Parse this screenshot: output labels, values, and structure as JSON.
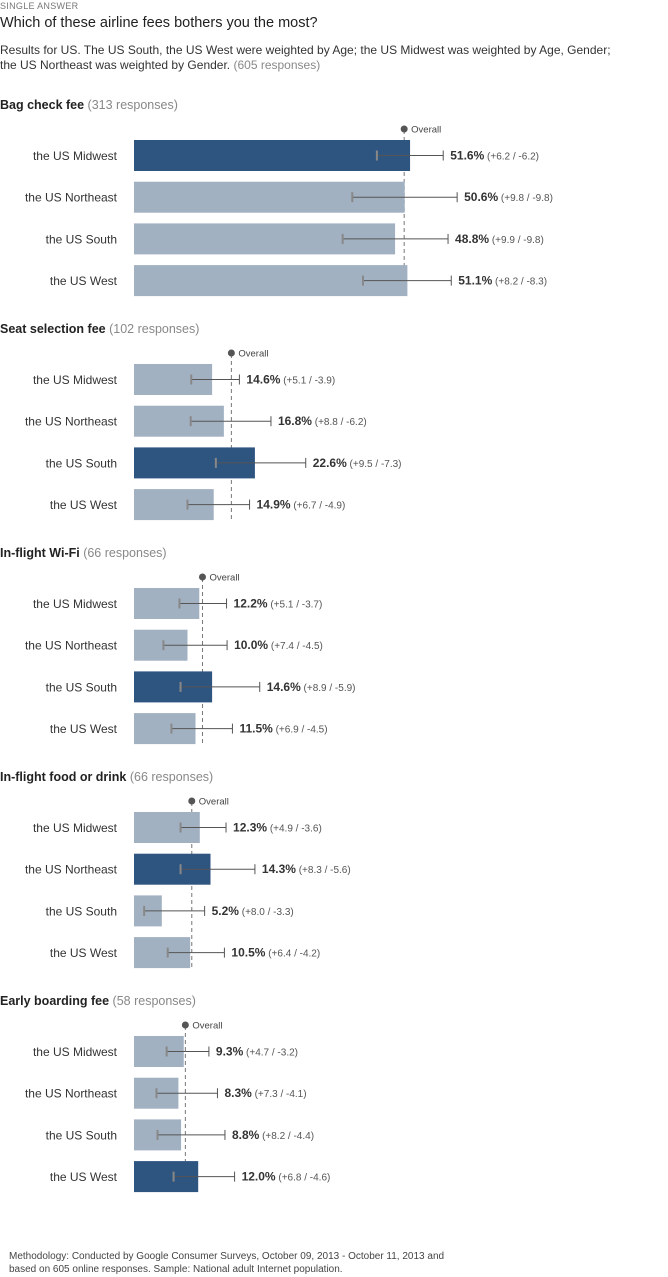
{
  "header": {
    "kicker": "SINGLE ANSWER",
    "question": "Which of these airline fees bothers you the most?",
    "results_line1": "Results for US. The US South, the US West were weighted by Age; the US Midwest was weighted by Age, Gender;",
    "results_line2": "the US Northeast was weighted by Gender.",
    "responses": "(605 responses)"
  },
  "overall_label": "Overall",
  "colors": {
    "highlight": "#2e5480",
    "normal": "#a2b1c2",
    "text": "#333333"
  },
  "chart_data": [
    {
      "type": "bar",
      "title": "Bag check fee",
      "responses": "(313 responses)",
      "categories": [
        "the US Midwest",
        "the US Northeast",
        "the US South",
        "the US West"
      ],
      "values": [
        51.6,
        50.6,
        48.8,
        51.1
      ],
      "value_labels": [
        "51.6%",
        "50.6%",
        "48.8%",
        "51.1%"
      ],
      "error_labels": [
        "(+6.2 / -6.2)",
        "(+9.8 / -9.8)",
        "(+9.9 / -9.8)",
        "(+8.2 / -8.3)"
      ],
      "error_plus": [
        6.2,
        9.8,
        9.9,
        8.2
      ],
      "error_minus": [
        6.2,
        9.8,
        9.8,
        8.3
      ],
      "highlight_index": 0,
      "overall": 50.5
    },
    {
      "type": "bar",
      "title": "Seat selection fee",
      "responses": "(102 responses)",
      "categories": [
        "the US Midwest",
        "the US Northeast",
        "the US South",
        "the US West"
      ],
      "values": [
        14.6,
        16.8,
        22.6,
        14.9
      ],
      "value_labels": [
        "14.6%",
        "16.8%",
        "22.6%",
        "14.9%"
      ],
      "error_labels": [
        "(+5.1 / -3.9)",
        "(+8.8 / -6.2)",
        "(+9.5 / -7.3)",
        "(+6.7 / -4.9)"
      ],
      "error_plus": [
        5.1,
        8.8,
        9.5,
        6.7
      ],
      "error_minus": [
        3.9,
        6.2,
        7.3,
        4.9
      ],
      "highlight_index": 2,
      "overall": 18.2
    },
    {
      "type": "bar",
      "title": "In-flight Wi-Fi",
      "responses": "(66 responses)",
      "categories": [
        "the US Midwest",
        "the US Northeast",
        "the US South",
        "the US West"
      ],
      "values": [
        12.2,
        10.0,
        14.6,
        11.5
      ],
      "value_labels": [
        "12.2%",
        "10.0%",
        "14.6%",
        "11.5%"
      ],
      "error_labels": [
        "(+5.1 / -3.7)",
        "(+7.4 / -4.5)",
        "(+8.9 / -5.9)",
        "(+6.9 / -4.5)"
      ],
      "error_plus": [
        5.1,
        7.4,
        8.9,
        6.9
      ],
      "error_minus": [
        3.7,
        4.5,
        5.9,
        4.5
      ],
      "highlight_index": 2,
      "overall": 12.8
    },
    {
      "type": "bar",
      "title": "In-flight food or drink",
      "responses": "(66 responses)",
      "categories": [
        "the US Midwest",
        "the US Northeast",
        "the US South",
        "the US West"
      ],
      "values": [
        12.3,
        14.3,
        5.2,
        10.5
      ],
      "value_labels": [
        "12.3%",
        "14.3%",
        "5.2%",
        "10.5%"
      ],
      "error_labels": [
        "(+4.9 / -3.6)",
        "(+8.3 / -5.6)",
        "(+8.0 / -3.3)",
        "(+6.4 / -4.2)"
      ],
      "error_plus": [
        4.9,
        8.3,
        8.0,
        6.4
      ],
      "error_minus": [
        3.6,
        5.6,
        3.3,
        4.2
      ],
      "highlight_index": 1,
      "overall": 10.8
    },
    {
      "type": "bar",
      "title": "Early boarding fee",
      "responses": "(58 responses)",
      "categories": [
        "the US Midwest",
        "the US Northeast",
        "the US South",
        "the US West"
      ],
      "values": [
        9.3,
        8.3,
        8.8,
        12.0
      ],
      "value_labels": [
        "9.3%",
        "8.3%",
        "8.8%",
        "12.0%"
      ],
      "error_labels": [
        "(+4.7 / -3.2)",
        "(+7.3 / -4.1)",
        "(+8.2 / -4.4)",
        "(+6.8 / -4.6)"
      ],
      "error_plus": [
        4.7,
        7.3,
        8.2,
        6.8
      ],
      "error_minus": [
        3.2,
        4.1,
        4.4,
        4.6
      ],
      "highlight_index": 3,
      "overall": 9.6
    }
  ],
  "footer": {
    "line1": "Methodology: Conducted by Google Consumer Surveys, October 09, 2013 - October 11, 2013 and",
    "line2": "based on 605 online responses. Sample: National adult Internet population."
  }
}
